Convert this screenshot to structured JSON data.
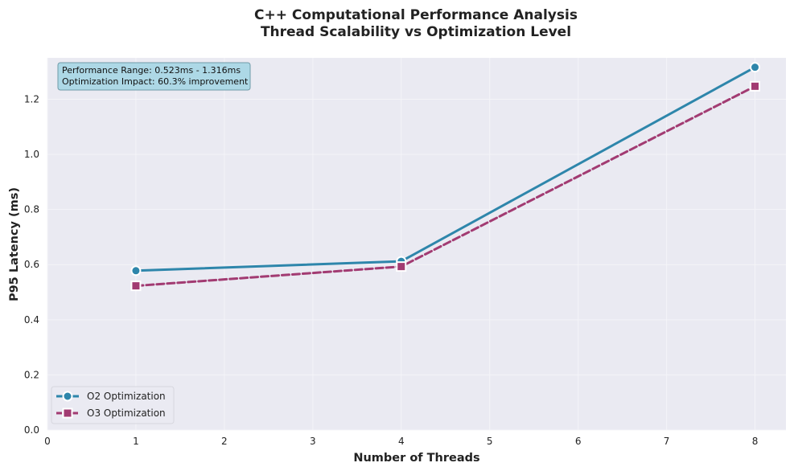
{
  "chart_data": {
    "type": "line",
    "title": [
      "C++ Computational Performance Analysis",
      "Thread Scalability vs Optimization Level"
    ],
    "xlabel": "Number of Threads",
    "ylabel": "P95 Latency (ms)",
    "xlim": [
      0,
      8.35
    ],
    "ylim": [
      0,
      1.35
    ],
    "xticks": [
      0,
      1,
      2,
      3,
      4,
      5,
      6,
      7,
      8
    ],
    "yticks": [
      0.0,
      0.2,
      0.4,
      0.6,
      0.8,
      1.0,
      1.2
    ],
    "ytick_labels": [
      "0.0",
      "0.2",
      "0.4",
      "0.6",
      "0.8",
      "1.0",
      "1.2"
    ],
    "grid": true,
    "legend_position": "lower-left",
    "series": [
      {
        "name": "O2 Optimization",
        "x": [
          1,
          4,
          8
        ],
        "values": [
          0.578,
          0.612,
          1.316
        ],
        "color": "#2e86ab",
        "line_style": "solid",
        "marker": "circle"
      },
      {
        "name": "O3 Optimization",
        "x": [
          1,
          4,
          8
        ],
        "values": [
          0.523,
          0.593,
          1.247
        ],
        "color": "#a23b72",
        "line_style": "dashed",
        "marker": "square"
      }
    ],
    "annotation": {
      "lines": [
        "Performance Range: 0.523ms - 1.316ms",
        "Optimization Impact: 60.3% improvement"
      ],
      "position": "top-left"
    },
    "colors": {
      "plot_background": "#eaeaf2",
      "grid": "#f4f4f8",
      "annotation_box": "#add8e6"
    }
  }
}
